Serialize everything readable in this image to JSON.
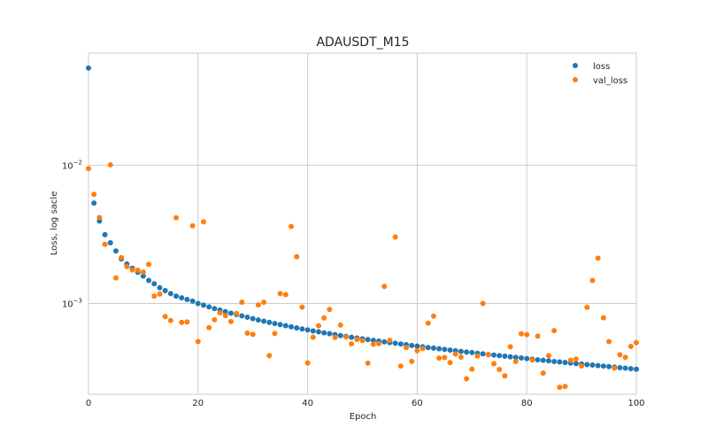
{
  "chart_data": {
    "type": "scatter",
    "title": "ADAUSDT_M15",
    "xlabel": "Epoch",
    "ylabel": "Loss, log sacle",
    "xlim": [
      0,
      100
    ],
    "ylim": [
      0.00022,
      0.065
    ],
    "yscale": "log",
    "grid": true,
    "legend_position": "top-right",
    "x_ticks": [
      {
        "value": 0,
        "label": "0"
      },
      {
        "value": 20,
        "label": "20"
      },
      {
        "value": 40,
        "label": "40"
      },
      {
        "value": 60,
        "label": "60"
      },
      {
        "value": 80,
        "label": "80"
      },
      {
        "value": 100,
        "label": "100"
      }
    ],
    "y_ticks": [
      {
        "value": 0.01,
        "base": "10",
        "exp": "−2"
      },
      {
        "value": 0.001,
        "base": "10",
        "exp": "−3"
      }
    ],
    "series": [
      {
        "name": "loss",
        "color": "#1f77b4",
        "x": [
          0,
          1,
          2,
          3,
          4,
          5,
          6,
          7,
          8,
          9,
          10,
          11,
          12,
          13,
          14,
          15,
          16,
          17,
          18,
          19,
          20,
          21,
          22,
          23,
          24,
          25,
          26,
          27,
          28,
          29,
          30,
          31,
          32,
          33,
          34,
          35,
          36,
          37,
          38,
          39,
          40,
          41,
          42,
          43,
          44,
          45,
          46,
          47,
          48,
          49,
          50,
          51,
          52,
          53,
          54,
          55,
          56,
          57,
          58,
          59,
          60,
          61,
          62,
          63,
          64,
          65,
          66,
          67,
          68,
          69,
          70,
          71,
          72,
          73,
          74,
          75,
          76,
          77,
          78,
          79,
          80,
          81,
          82,
          83,
          84,
          85,
          86,
          87,
          88,
          89,
          90,
          91,
          92,
          93,
          94,
          95,
          96,
          97,
          98,
          99,
          100
        ],
        "values": [
          0.0507,
          0.00533,
          0.00395,
          0.00315,
          0.00275,
          0.0024,
          0.0021,
          0.00193,
          0.0018,
          0.00168,
          0.00158,
          0.00147,
          0.00139,
          0.0013,
          0.00124,
          0.00118,
          0.00113,
          0.0011,
          0.00107,
          0.00104,
          0.001,
          0.000973,
          0.000945,
          0.000918,
          0.000895,
          0.000872,
          0.00085,
          0.000832,
          0.000813,
          0.000795,
          0.000777,
          0.00076,
          0.000745,
          0.00073,
          0.000716,
          0.000703,
          0.00069,
          0.000677,
          0.000665,
          0.000654,
          0.000643,
          0.000633,
          0.000623,
          0.000613,
          0.000604,
          0.000595,
          0.000586,
          0.000578,
          0.00057,
          0.000562,
          0.000555,
          0.000548,
          0.000541,
          0.000534,
          0.000527,
          0.000521,
          0.000515,
          0.000509,
          0.000503,
          0.000497,
          0.000491,
          0.000486,
          0.00048,
          0.000475,
          0.00047,
          0.000465,
          0.00046,
          0.000455,
          0.00045,
          0.000445,
          0.000441,
          0.000436,
          0.000432,
          0.000427,
          0.000423,
          0.000419,
          0.000415,
          0.000411,
          0.000407,
          0.000403,
          0.000399,
          0.000395,
          0.000391,
          0.000388,
          0.000384,
          0.00038,
          0.000377,
          0.000374,
          0.00037,
          0.000367,
          0.000364,
          0.000361,
          0.000358,
          0.000355,
          0.000352,
          0.000349,
          0.000346,
          0.000343,
          0.00034,
          0.000337,
          0.000334
        ]
      },
      {
        "name": "val_loss",
        "color": "#ff7f0e",
        "x": [
          0,
          1,
          2,
          3,
          4,
          5,
          6,
          7,
          8,
          9,
          10,
          11,
          12,
          13,
          14,
          15,
          16,
          17,
          18,
          19,
          20,
          21,
          22,
          23,
          24,
          25,
          26,
          27,
          28,
          29,
          30,
          31,
          32,
          33,
          34,
          35,
          36,
          37,
          38,
          39,
          40,
          41,
          42,
          43,
          44,
          45,
          46,
          47,
          48,
          49,
          50,
          51,
          52,
          53,
          54,
          55,
          56,
          57,
          58,
          59,
          60,
          61,
          62,
          63,
          64,
          65,
          66,
          67,
          68,
          69,
          70,
          71,
          72,
          73,
          74,
          75,
          76,
          77,
          78,
          79,
          80,
          81,
          82,
          83,
          84,
          85,
          86,
          87,
          88,
          89,
          90,
          91,
          92,
          93,
          94,
          95,
          96,
          97,
          98,
          99,
          100
        ],
        "values": [
          0.00948,
          0.00617,
          0.00419,
          0.00268,
          0.0101,
          0.00153,
          0.00215,
          0.00185,
          0.00175,
          0.00174,
          0.00169,
          0.00192,
          0.00113,
          0.00117,
          0.000805,
          0.000753,
          0.00418,
          0.000729,
          0.000735,
          0.00365,
          0.00053,
          0.0039,
          0.000669,
          0.000763,
          0.000855,
          0.000817,
          0.00074,
          0.000845,
          0.00102,
          0.00061,
          0.000598,
          0.000976,
          0.00102,
          0.000419,
          0.000606,
          0.00118,
          0.00116,
          0.00361,
          0.00218,
          0.000942,
          0.000371,
          0.000569,
          0.00069,
          0.000786,
          0.000906,
          0.000567,
          0.000698,
          0.000572,
          0.00051,
          0.000549,
          0.000539,
          0.00037,
          0.000507,
          0.000512,
          0.00133,
          0.000541,
          0.00303,
          0.000352,
          0.00048,
          0.000381,
          0.000455,
          0.000472,
          0.00072,
          0.000809,
          0.000402,
          0.000406,
          0.000373,
          0.00043,
          0.000409,
          0.000285,
          0.000334,
          0.000416,
          0.001,
          0.000425,
          0.000366,
          0.000333,
          0.000299,
          0.000486,
          0.00038,
          0.000603,
          0.000595,
          0.000389,
          0.00058,
          0.000313,
          0.000419,
          0.000636,
          0.000247,
          0.000251,
          0.000388,
          0.000395,
          0.000353,
          0.000937,
          0.00147,
          0.00213,
          0.000787,
          0.00053,
          0.00034,
          0.000425,
          0.000407,
          0.000489,
          0.00052
        ]
      }
    ]
  }
}
